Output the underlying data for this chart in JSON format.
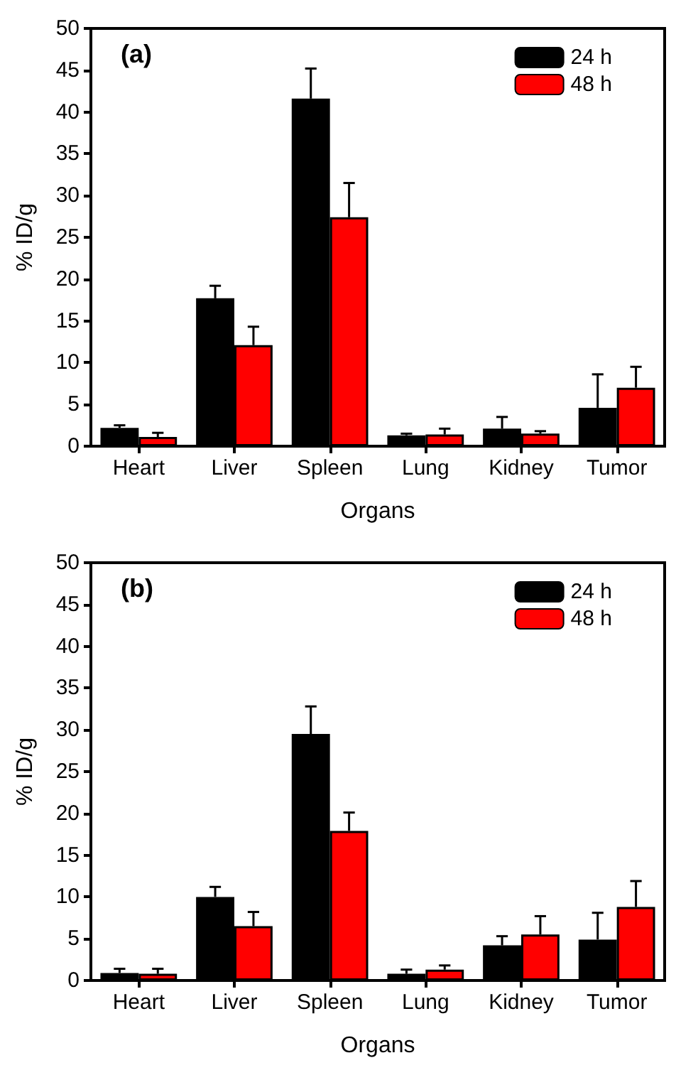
{
  "chart_data": [
    {
      "type": "bar",
      "title": "(a)",
      "xlabel": "Organs",
      "ylabel": "% ID/g",
      "categories": [
        "Heart",
        "Liver",
        "Spleen",
        "Lung",
        "Kidney",
        "Tumor"
      ],
      "ylim": [
        0,
        50
      ],
      "yticks": [
        0,
        5,
        10,
        15,
        20,
        25,
        30,
        35,
        40,
        45,
        50
      ],
      "legend": "top right",
      "series": [
        {
          "name": "24 h",
          "color": "#000000",
          "values": [
            2.2,
            17.7,
            41.6,
            1.3,
            2.1,
            4.6
          ],
          "errors": [
            [
              2.2,
              2.5
            ],
            [
              17.7,
              19.2
            ],
            [
              41.6,
              45.2
            ],
            [
              1.3,
              1.5
            ],
            [
              2.1,
              3.5
            ],
            [
              4.6,
              8.6
            ]
          ]
        },
        {
          "name": "48 h",
          "color": "#ff0000",
          "values": [
            1.1,
            12.1,
            27.4,
            1.4,
            1.5,
            7.0
          ],
          "errors": [
            [
              1.1,
              1.6
            ],
            [
              12.1,
              14.3
            ],
            [
              27.4,
              31.5
            ],
            [
              1.4,
              2.1
            ],
            [
              1.5,
              1.8
            ],
            [
              7.0,
              9.5
            ]
          ]
        }
      ]
    },
    {
      "type": "bar",
      "title": "(b)",
      "xlabel": "Organs",
      "ylabel": "% ID/g",
      "categories": [
        "Heart",
        "Liver",
        "Spleen",
        "Lung",
        "Kidney",
        "Tumor"
      ],
      "ylim": [
        0,
        50
      ],
      "yticks": [
        0,
        5,
        10,
        15,
        20,
        25,
        30,
        35,
        40,
        45,
        50
      ],
      "legend": "top right",
      "series": [
        {
          "name": "24 h",
          "color": "#000000",
          "values": [
            0.9,
            10.0,
            29.5,
            0.8,
            4.2,
            4.9
          ],
          "errors": [
            [
              0.9,
              1.4
            ],
            [
              10.0,
              11.2
            ],
            [
              29.5,
              32.8
            ],
            [
              0.8,
              1.3
            ],
            [
              4.2,
              5.3
            ],
            [
              4.9,
              8.1
            ]
          ]
        },
        {
          "name": "48 h",
          "color": "#ff0000",
          "values": [
            0.8,
            6.5,
            17.9,
            1.3,
            5.5,
            8.8
          ],
          "errors": [
            [
              0.8,
              1.4
            ],
            [
              6.5,
              8.2
            ],
            [
              17.9,
              20.1
            ],
            [
              1.3,
              1.8
            ],
            [
              5.5,
              7.7
            ],
            [
              8.8,
              11.9
            ]
          ]
        }
      ]
    }
  ]
}
